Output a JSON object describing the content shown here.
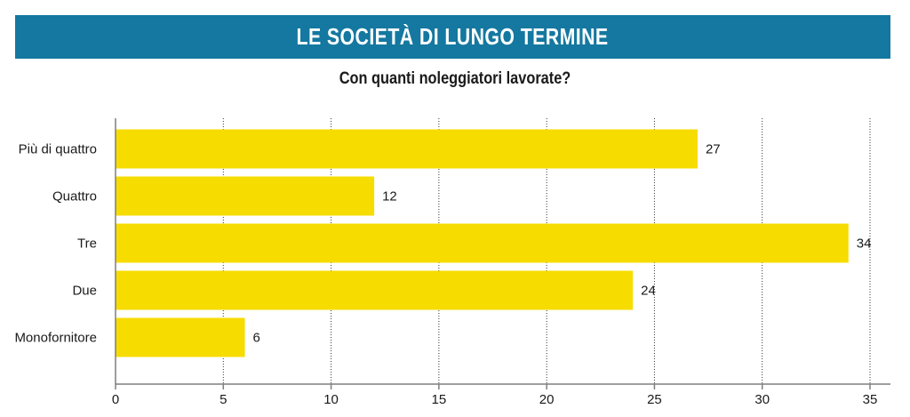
{
  "header": {
    "title": "LE SOCIETÀ DI LUNGO TERMINE",
    "subtitle": "Con quanti noleggiatori lavorate?"
  },
  "colors": {
    "banner": "#1478a0",
    "bar": "#f7dc00",
    "axis": "#7f7f7f",
    "grid": "#333333"
  },
  "chart_data": {
    "type": "bar",
    "orientation": "horizontal",
    "categories": [
      "Più di quattro",
      "Quattro",
      "Tre",
      "Due",
      "Monofornitore"
    ],
    "values": [
      27,
      12,
      34,
      24,
      6
    ],
    "xlim": [
      0,
      35
    ],
    "xticks": [
      0,
      5,
      10,
      15,
      20,
      25,
      30,
      35
    ],
    "grid": true,
    "title": "LE SOCIETÀ DI LUNGO TERMINE",
    "subtitle": "Con quanti noleggiatori lavorate?",
    "xlabel": "",
    "ylabel": ""
  }
}
